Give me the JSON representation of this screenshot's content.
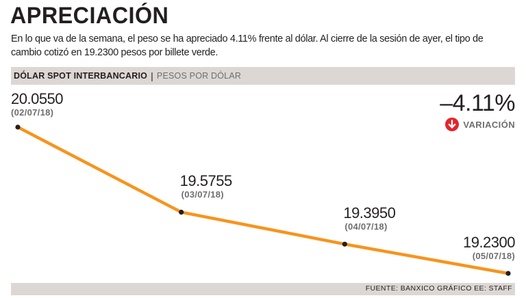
{
  "title": "APRECIACIÓN",
  "subtitle": "En lo que va de la semana, el peso se ha apreciado 4.11% frente al dólar. Al cierre de la sesión de ayer, el tipo de cambio cotizó en 19.2300 pesos por billete verde.",
  "header": {
    "series_label": "DÓLAR SPOT INTERBANCARIO",
    "separator": "|",
    "unit_label": "PESOS POR DÓLAR"
  },
  "variation": {
    "value": "–4.11%",
    "label": "VARIACIÓN",
    "icon": "arrow-down-circle-icon",
    "icon_color": "#e2262b"
  },
  "footer": {
    "source": "FUENTE: BANXICO GRÁFICO EE: STAFF"
  },
  "colors": {
    "line": "#f7941d",
    "marker": "#231f20",
    "bars": "#dcd7d3"
  },
  "chart_data": {
    "type": "line",
    "title": "DÓLAR SPOT INTERBANCARIO",
    "ylabel": "PESOS POR DÓLAR",
    "xlabel": "",
    "categories": [
      "02/07/18",
      "03/07/18",
      "04/07/18",
      "05/07/18"
    ],
    "series": [
      {
        "name": "Dólar spot interbancario",
        "values": [
          20.055,
          19.5755,
          19.395,
          19.23
        ],
        "value_labels": [
          "20.0550",
          "19.5755",
          "19.3950",
          "19.2300"
        ],
        "date_labels": [
          "(02/07/18)",
          "(03/07/18)",
          "(04/07/18)",
          "(05/07/18)"
        ]
      }
    ],
    "grid": false,
    "legend": "none"
  }
}
